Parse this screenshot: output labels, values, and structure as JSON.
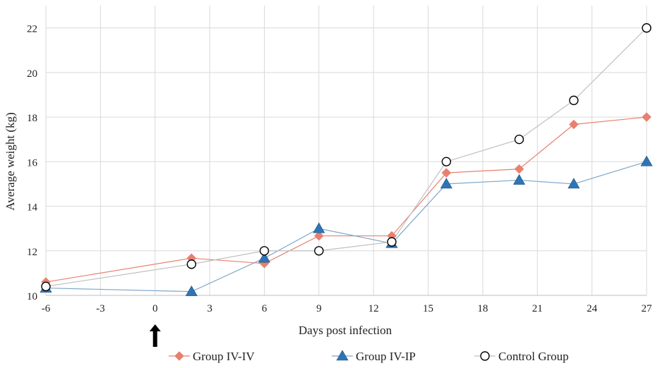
{
  "chart_data": {
    "type": "line",
    "xlabel": "Days post infection",
    "ylabel": "Average weight (kg)",
    "xlim": [
      -6,
      27
    ],
    "ylim": [
      10,
      23
    ],
    "xticks": [
      -6,
      -3,
      0,
      3,
      6,
      9,
      12,
      15,
      18,
      21,
      24,
      27
    ],
    "yticks": [
      10,
      12,
      14,
      16,
      18,
      20,
      22
    ],
    "grid": true,
    "legend_position": "bottom",
    "annotation": {
      "type": "arrow",
      "x": 0,
      "direction": "up",
      "color": "#000000"
    },
    "series": [
      {
        "name": "Group IV-IV",
        "marker": "diamond",
        "color": "#e8806f",
        "line_color": "#e8806f",
        "x": [
          -6,
          2,
          6,
          9,
          13,
          16,
          20,
          23,
          27
        ],
        "y": [
          10.6,
          11.67,
          11.43,
          12.67,
          12.67,
          15.5,
          15.67,
          17.67,
          18.0
        ]
      },
      {
        "name": "Group IV-IP",
        "marker": "triangle",
        "color": "#2e75b6",
        "line_color": "#7fa7c9",
        "x": [
          -6,
          2,
          6,
          9,
          13,
          16,
          20,
          23,
          27
        ],
        "y": [
          10.33,
          10.17,
          11.67,
          13.0,
          12.33,
          15.0,
          15.17,
          15.0,
          16.0
        ]
      },
      {
        "name": "Control Group",
        "marker": "circle-open",
        "color": "#000000",
        "line_color": "#c0c0c0",
        "x": [
          -6,
          2,
          6,
          9,
          13,
          16,
          20,
          23,
          27
        ],
        "y": [
          10.4,
          11.4,
          12.0,
          12.0,
          12.4,
          16.0,
          17.0,
          18.75,
          22.0
        ]
      }
    ]
  }
}
